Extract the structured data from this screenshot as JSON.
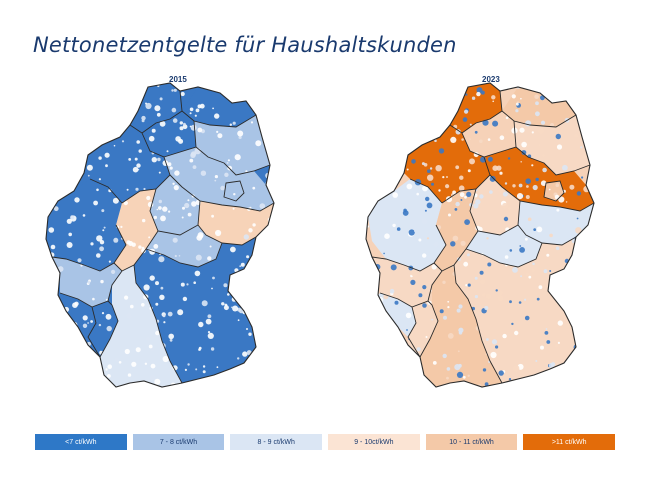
{
  "title": "Nettonetzentgelte für Haushaltskunden",
  "maps": [
    {
      "year": "2015",
      "base_color": "#3a78c4",
      "region_colors": [
        "#3a78c4",
        "#3a78c4",
        "#3a78c4",
        "#3a78c4",
        "#a9c4e6",
        "#a9c4e6",
        "#a9c4e6",
        "#f7d3b8",
        "#f7d3b8",
        "#a9c4e6",
        "#a9c4e6",
        "#3a78c4",
        "#dbe6f4",
        "#3a78c4",
        "#3a78c4",
        "#a9c4e6"
      ]
    },
    {
      "year": "2023",
      "base_color": "#f6d2b8",
      "region_colors": [
        "#dbe6f4",
        "#e36c0a",
        "#e36c0a",
        "#f4c9a8",
        "#f7d9c4",
        "#e36c0a",
        "#f7d9c4",
        "#dbe6f4",
        "#f4c9a8",
        "#dbe6f4",
        "#f7d9c4",
        "#f7d9c4",
        "#f4c9a8",
        "#dbe6f4",
        "#f7d9c4",
        "#f4c9a8"
      ]
    }
  ],
  "legend": [
    {
      "label": "<7 ct/kWh",
      "color": "#2e78c7",
      "text_color": "#ffffff"
    },
    {
      "label": "7 - 8 ct/kWh",
      "color": "#a9c4e6",
      "text_color": "#1a3a6e"
    },
    {
      "label": "8 - 9 ct/kWh",
      "color": "#dbe6f4",
      "text_color": "#1a3a6e"
    },
    {
      "label": "9 - 10ct/kWh",
      "color": "#fbe4d4",
      "text_color": "#1a3a6e"
    },
    {
      "label": "10 - 11 ct/kWh",
      "color": "#f4c9a8",
      "text_color": "#1a3a6e"
    },
    {
      "label": ">11 ct/kWh",
      "color": "#e36c0a",
      "text_color": "#ffffff"
    }
  ]
}
